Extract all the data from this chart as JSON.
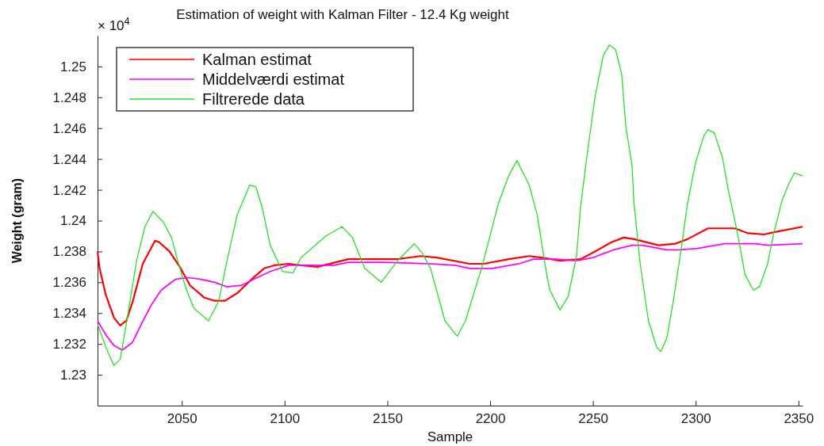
{
  "chart_data": {
    "type": "line",
    "title": "Estimation of weight with Kalman Filter - 12.4 Kg weight",
    "xlabel": "Sample",
    "ylabel": "Weight  (gram)",
    "annotations": [
      "× 10$^{4}$"
    ],
    "xlim": [
      2009,
      2352
    ],
    "xticks": [
      2050,
      2100,
      2150,
      2200,
      2250,
      2300,
      2350
    ],
    "ylim": [
      1.228,
      1.252
    ],
    "yticks": [
      {
        "value": 1.23,
        "label": "1.23"
      },
      1.232,
      1.234,
      1.236,
      1.238,
      {
        "value": 1.24,
        "label": "1.24"
      },
      1.242,
      1.244,
      1.246,
      1.248,
      {
        "value": 1.25,
        "label": "1.25"
      }
    ],
    "grid": false,
    "legend": "top left",
    "marker": "none",
    "line_style": "solid",
    "series": [
      {
        "name": "Kalman estimat",
        "color": "#ff0000",
        "x": [
          2009,
          2010,
          2013,
          2017,
          2020,
          2023,
          2026,
          2031,
          2037,
          2039,
          2044,
          2049,
          2054,
          2061,
          2066,
          2071,
          2077,
          2084,
          2090,
          2095,
          2102,
          2108,
          2116,
          2131,
          2155,
          2166,
          2174,
          2190,
          2197,
          2209,
          2219,
          2225,
          2234,
          2244,
          2251,
          2259,
          2265,
          2270,
          2282,
          2290,
          2296,
          2306,
          2312,
          2319,
          2325,
          2333,
          2340,
          2352
        ],
        "values": [
          1.238,
          1.2369,
          1.2352,
          1.2337,
          1.2332,
          1.2335,
          1.2347,
          1.2372,
          1.2387,
          1.2386,
          1.238,
          1.237,
          1.2358,
          1.235,
          1.2348,
          1.2348,
          1.2353,
          1.2362,
          1.2369,
          1.2371,
          1.2372,
          1.2371,
          1.237,
          1.2375,
          1.2375,
          1.2377,
          1.2376,
          1.2372,
          1.2372,
          1.2375,
          1.2377,
          1.2376,
          1.2374,
          1.2375,
          1.238,
          1.2386,
          1.2389,
          1.2388,
          1.2384,
          1.2385,
          1.2388,
          1.2395,
          1.2395,
          1.2395,
          1.2392,
          1.2391,
          1.2393,
          1.2396
        ]
      },
      {
        "name": "Middelværdi estimat",
        "color": "#ff00ff",
        "x": [
          2009,
          2013,
          2017,
          2021,
          2026,
          2030,
          2035,
          2040,
          2047,
          2053,
          2059,
          2066,
          2072,
          2079,
          2085,
          2093,
          2102,
          2111,
          2124,
          2131,
          2147,
          2170,
          2183,
          2190,
          2201,
          2214,
          2221,
          2232,
          2242,
          2250,
          2260,
          2269,
          2274,
          2286,
          2292,
          2301,
          2314,
          2329,
          2335,
          2352
        ],
        "values": [
          1.2335,
          1.2326,
          1.2319,
          1.2316,
          1.2321,
          1.2332,
          1.2345,
          1.2355,
          1.2362,
          1.2363,
          1.2362,
          1.236,
          1.2357,
          1.2358,
          1.2362,
          1.2367,
          1.2371,
          1.2371,
          1.2371,
          1.2373,
          1.2373,
          1.2372,
          1.2371,
          1.2369,
          1.2369,
          1.2372,
          1.2375,
          1.2375,
          1.2374,
          1.2376,
          1.2381,
          1.2384,
          1.2384,
          1.2381,
          1.2381,
          1.2382,
          1.2385,
          1.2385,
          1.2384,
          1.2385
        ]
      },
      {
        "name": "Filtrerede data",
        "color": "#22e022",
        "x": [
          2009,
          2013,
          2017,
          2020,
          2023,
          2028,
          2032,
          2036,
          2041,
          2045,
          2048,
          2052,
          2056,
          2063,
          2068,
          2072,
          2077,
          2083,
          2086,
          2089,
          2093,
          2099,
          2104,
          2108,
          2120,
          2128,
          2133,
          2139,
          2147,
          2155,
          2163,
          2167,
          2171,
          2178,
          2184,
          2188,
          2196,
          2204,
          2209,
          2213,
          2219,
          2223,
          2227,
          2229,
          2234,
          2238,
          2242,
          2244,
          2247,
          2251,
          2255,
          2258,
          2261,
          2264,
          2266,
          2269,
          2270,
          2273,
          2277,
          2281,
          2283,
          2286,
          2289,
          2293,
          2296,
          2300,
          2304,
          2306,
          2309,
          2313,
          2316,
          2320,
          2324,
          2328,
          2331,
          2335,
          2338,
          2342,
          2345,
          2348,
          2352
        ],
        "values": [
          1.2333,
          1.2318,
          1.2306,
          1.231,
          1.2333,
          1.2374,
          1.2396,
          1.2406,
          1.2399,
          1.2389,
          1.2374,
          1.2356,
          1.2343,
          1.2335,
          1.2348,
          1.2374,
          1.2404,
          1.2423,
          1.2422,
          1.2409,
          1.2384,
          1.2367,
          1.2366,
          1.2376,
          1.239,
          1.2396,
          1.2389,
          1.2369,
          1.236,
          1.2374,
          1.2385,
          1.2379,
          1.2369,
          1.2335,
          1.2325,
          1.2335,
          1.237,
          1.2411,
          1.2429,
          1.2439,
          1.2423,
          1.2403,
          1.2369,
          1.2355,
          1.2342,
          1.2351,
          1.2377,
          1.2409,
          1.2441,
          1.248,
          1.2507,
          1.2514,
          1.2511,
          1.2495,
          1.2461,
          1.2436,
          1.2411,
          1.2372,
          1.2335,
          1.2318,
          1.2315,
          1.2324,
          1.2347,
          1.2382,
          1.2411,
          1.2438,
          1.2455,
          1.2459,
          1.2457,
          1.2441,
          1.2419,
          1.2394,
          1.2365,
          1.2355,
          1.2357,
          1.2372,
          1.2392,
          1.2413,
          1.2423,
          1.2431,
          1.2429
        ]
      }
    ]
  }
}
